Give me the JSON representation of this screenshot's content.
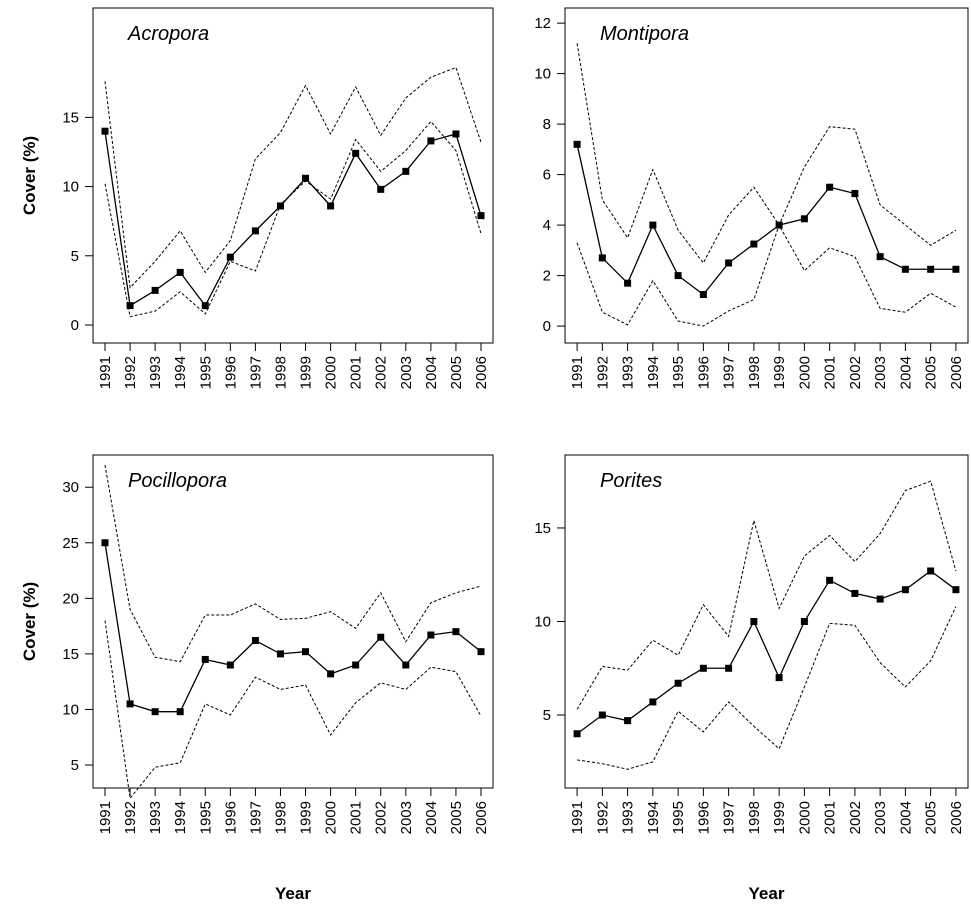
{
  "chart_data": [
    {
      "type": "line",
      "title": "Acropora",
      "ylabel": "Cover (%)",
      "categories": [
        "1991",
        "1992",
        "1993",
        "1994",
        "1995",
        "1996",
        "1997",
        "1998",
        "1999",
        "2000",
        "2001",
        "2002",
        "2003",
        "2004",
        "2005",
        "2006"
      ],
      "ylim": [
        -1.3,
        22.9
      ],
      "yticks": [
        0,
        5,
        10,
        15
      ],
      "series": [
        {
          "color": "#000000",
          "dash": false,
          "markers": true,
          "values": [
            14.0,
            1.4,
            2.5,
            3.8,
            1.4,
            4.9,
            6.8,
            8.6,
            10.6,
            8.6,
            12.4,
            9.8,
            11.1,
            13.3,
            13.8,
            7.9
          ]
        },
        {
          "color": "#000000",
          "dash": true,
          "markers": false,
          "values": [
            17.6,
            2.7,
            4.6,
            6.8,
            3.8,
            6.1,
            12.0,
            13.9,
            17.3,
            13.8,
            17.2,
            13.7,
            16.4,
            17.9,
            18.6,
            13.2
          ]
        },
        {
          "color": "#000000",
          "dash": true,
          "markers": false,
          "values": [
            10.2,
            0.6,
            1.0,
            2.4,
            0.8,
            4.6,
            3.9,
            8.7,
            10.4,
            9.1,
            13.4,
            11.1,
            12.6,
            14.7,
            12.6,
            6.6
          ]
        }
      ]
    },
    {
      "type": "line",
      "title": "Montipora",
      "categories": [
        "1991",
        "1992",
        "1993",
        "1994",
        "1995",
        "1996",
        "1997",
        "1998",
        "1999",
        "2000",
        "2001",
        "2002",
        "2003",
        "2004",
        "2005",
        "2006"
      ],
      "ylim": [
        -0.67,
        12.6
      ],
      "yticks": [
        0,
        2,
        4,
        6,
        8,
        10,
        12
      ],
      "series": [
        {
          "color": "#000000",
          "dash": false,
          "markers": true,
          "values": [
            7.2,
            2.7,
            1.7,
            4.0,
            2.0,
            1.25,
            2.5,
            3.25,
            4.0,
            4.25,
            5.5,
            5.25,
            2.75,
            2.25,
            2.25,
            2.25
          ]
        },
        {
          "color": "#000000",
          "dash": true,
          "markers": false,
          "values": [
            11.2,
            5.0,
            3.5,
            6.2,
            3.8,
            2.5,
            4.4,
            5.5,
            4.0,
            6.3,
            7.9,
            7.8,
            4.8,
            4.0,
            3.2,
            3.8
          ]
        },
        {
          "color": "#000000",
          "dash": true,
          "markers": false,
          "values": [
            3.3,
            0.55,
            0.05,
            1.8,
            0.2,
            0.0,
            0.6,
            1.05,
            4.0,
            2.2,
            3.1,
            2.75,
            0.7,
            0.55,
            1.3,
            0.75
          ]
        }
      ]
    },
    {
      "type": "line",
      "title": "Pocillopora",
      "ylabel": "Cover (%)",
      "xlabel": "Year",
      "categories": [
        "1991",
        "1992",
        "1993",
        "1994",
        "1995",
        "1996",
        "1997",
        "1998",
        "1999",
        "2000",
        "2001",
        "2002",
        "2003",
        "2004",
        "2005",
        "2006"
      ],
      "ylim": [
        2.93,
        32.9
      ],
      "yticks": [
        5,
        10,
        15,
        20,
        25,
        30
      ],
      "series": [
        {
          "color": "#000000",
          "dash": false,
          "markers": true,
          "values": [
            25,
            10.5,
            9.8,
            9.8,
            14.5,
            14.0,
            16.2,
            15.0,
            15.2,
            13.2,
            14.0,
            16.5,
            14.0,
            16.7,
            17.0,
            15.2
          ]
        },
        {
          "color": "#000000",
          "dash": true,
          "markers": false,
          "values": [
            32.0,
            19.0,
            14.7,
            14.3,
            18.5,
            18.5,
            19.5,
            18.1,
            18.2,
            18.8,
            17.3,
            20.5,
            16.1,
            19.6,
            20.5,
            21.1
          ]
        },
        {
          "color": "#000000",
          "dash": true,
          "markers": false,
          "values": [
            18.0,
            2.0,
            4.8,
            5.2,
            10.5,
            9.5,
            12.9,
            11.8,
            12.2,
            7.7,
            10.6,
            12.4,
            11.8,
            13.8,
            13.4,
            9.4
          ]
        }
      ]
    },
    {
      "type": "line",
      "title": "Porites",
      "xlabel": "Year",
      "categories": [
        "1991",
        "1992",
        "1993",
        "1994",
        "1995",
        "1996",
        "1997",
        "1998",
        "1999",
        "2000",
        "2001",
        "2002",
        "2003",
        "2004",
        "2005",
        "2006"
      ],
      "ylim": [
        1.1,
        18.9
      ],
      "yticks": [
        5,
        10,
        15
      ],
      "series": [
        {
          "color": "#000000",
          "dash": false,
          "markers": true,
          "values": [
            4.0,
            5.0,
            4.7,
            5.7,
            6.7,
            7.5,
            7.5,
            10.0,
            7.0,
            10.0,
            12.2,
            11.5,
            11.2,
            11.7,
            12.7,
            11.7
          ]
        },
        {
          "color": "#000000",
          "dash": true,
          "markers": false,
          "values": [
            5.3,
            7.6,
            7.4,
            9.0,
            8.2,
            10.9,
            9.2,
            15.4,
            10.7,
            13.5,
            14.6,
            13.2,
            14.7,
            17.0,
            17.5,
            12.7
          ]
        },
        {
          "color": "#000000",
          "dash": true,
          "markers": false,
          "values": [
            2.6,
            2.4,
            2.1,
            2.5,
            5.2,
            4.1,
            5.7,
            4.4,
            3.2,
            6.5,
            9.9,
            9.8,
            7.8,
            6.5,
            7.9,
            10.8
          ]
        }
      ]
    }
  ]
}
